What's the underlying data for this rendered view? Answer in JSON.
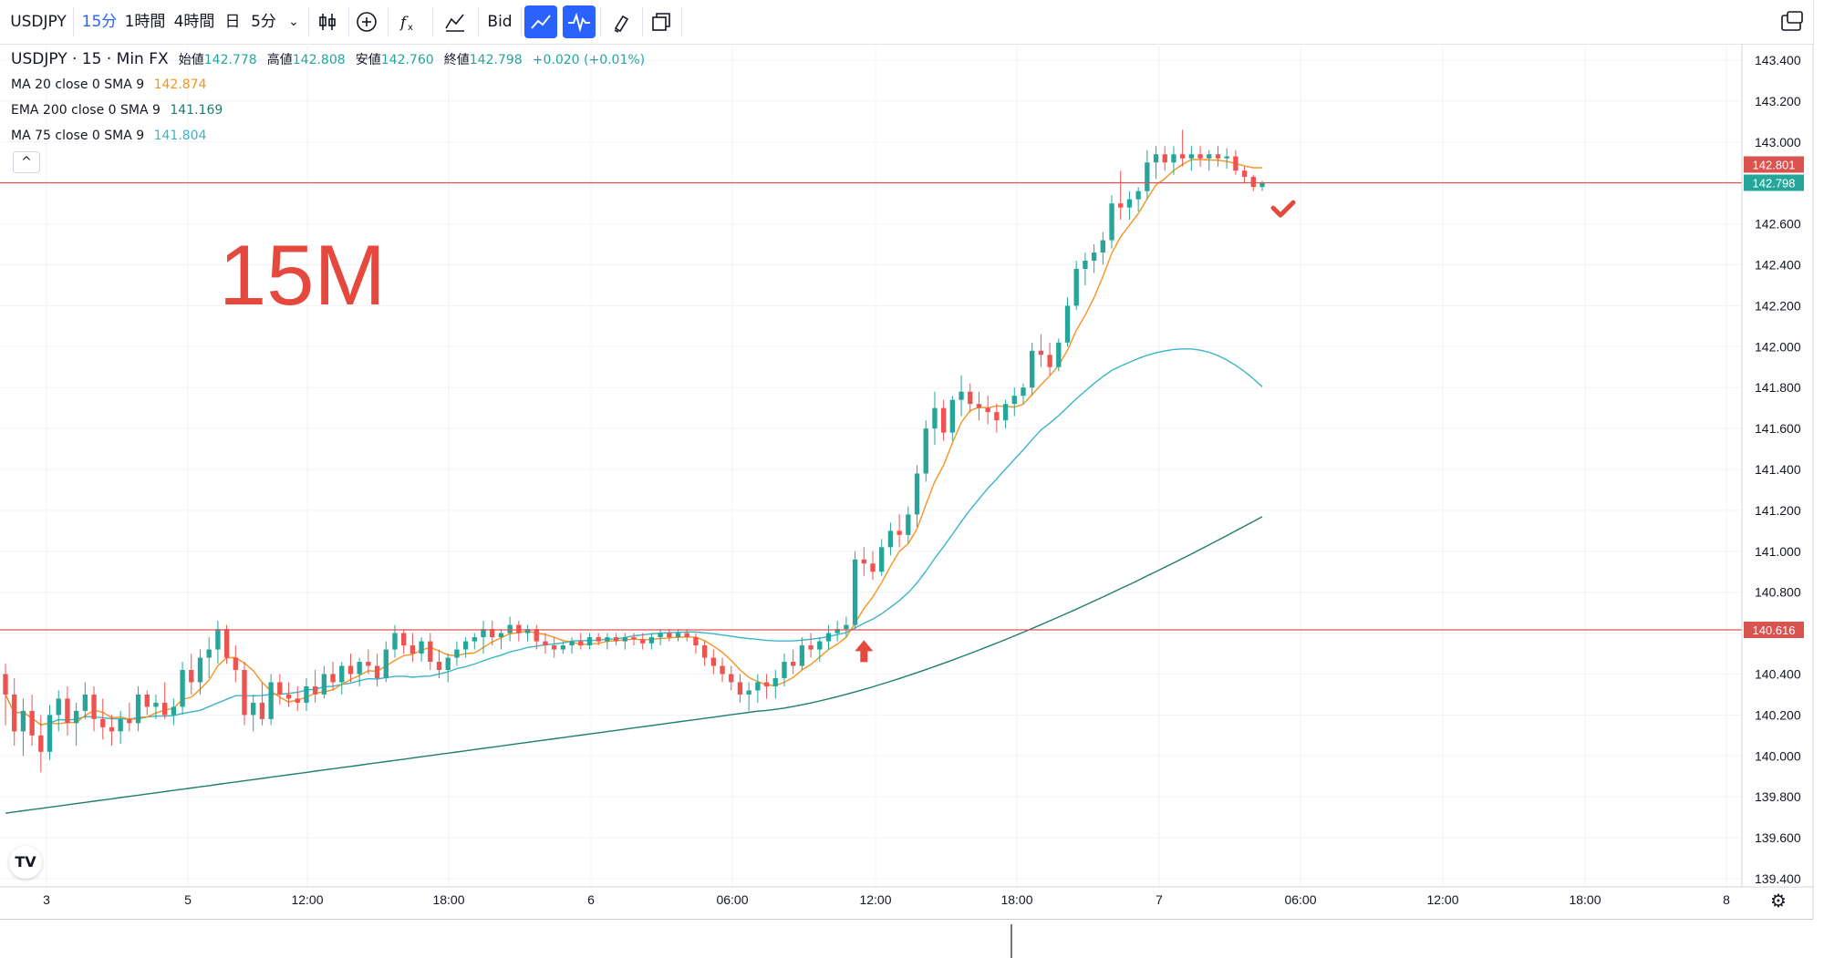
{
  "toolbar": {
    "symbol": "USDJPY",
    "interval_active": "15分",
    "interval_1h": "1時間",
    "interval_4h": "4時間",
    "interval_day": "日",
    "interval_5m": "5分",
    "bid_label": "Bid"
  },
  "legend": {
    "main": {
      "symbol": "USDJPY · 15 · Min FX",
      "open_label": "始値",
      "open": "142.778",
      "high_label": "高値",
      "high": "142.808",
      "low_label": "安値",
      "low": "142.760",
      "close_label": "終値",
      "close": "142.798",
      "change": "+0.020 (+0.01%)"
    },
    "ma20": {
      "label": "MA 20 close 0 SMA 9",
      "value": "142.874",
      "color": "#f7931e"
    },
    "ema200": {
      "label": "EMA 200 close 0 SMA 9",
      "value": "141.169",
      "color": "#1e7d6f"
    },
    "ma75": {
      "label": "MA 75 close 0 SMA 9",
      "value": "141.804",
      "color": "#3ab5c8"
    }
  },
  "overlay_text": "15M",
  "price_badges": {
    "upper_line": "142.801",
    "last_price": "142.798",
    "lower_line": "140.616"
  },
  "colors": {
    "up": "#26a69a",
    "down": "#ef5350",
    "annotation": "#e5483c",
    "hline": "#d9534f",
    "accent": "#2962ff"
  },
  "chart_data": {
    "type": "candlestick",
    "symbol": "USDJPY",
    "timeframe": "15",
    "ylim": [
      139.4,
      143.4
    ],
    "y_ticks": [
      "143.400",
      "143.200",
      "143.000",
      "142.800",
      "142.600",
      "142.400",
      "142.200",
      "142.000",
      "141.800",
      "141.600",
      "141.400",
      "141.200",
      "141.000",
      "140.800",
      "140.600",
      "140.400",
      "140.200",
      "140.000",
      "139.800",
      "139.600",
      "139.400"
    ],
    "x_ticks": [
      "3",
      "5",
      "12:00",
      "18:00",
      "6",
      "06:00",
      "12:00",
      "18:00",
      "7",
      "06:00",
      "12:00",
      "18:00",
      "8"
    ],
    "horizontal_lines": [
      142.801,
      140.616
    ],
    "annotations": [
      {
        "type": "up-arrow",
        "price": 140.53
      },
      {
        "type": "check",
        "price": 142.66
      }
    ],
    "candles": [
      [
        140.4,
        140.45,
        140.15,
        140.3
      ],
      [
        140.3,
        140.38,
        140.05,
        140.12
      ],
      [
        140.12,
        140.28,
        140.0,
        140.22
      ],
      [
        140.22,
        140.3,
        140.05,
        140.1
      ],
      [
        140.1,
        140.2,
        139.92,
        140.02
      ],
      [
        140.02,
        140.25,
        139.98,
        140.2
      ],
      [
        140.2,
        140.32,
        140.12,
        140.28
      ],
      [
        140.28,
        140.34,
        140.1,
        140.16
      ],
      [
        140.16,
        140.26,
        140.05,
        140.22
      ],
      [
        140.22,
        140.36,
        140.18,
        140.3
      ],
      [
        140.3,
        140.34,
        140.12,
        140.18
      ],
      [
        140.18,
        140.28,
        140.08,
        140.14
      ],
      [
        140.14,
        140.2,
        140.05,
        140.12
      ],
      [
        140.12,
        140.22,
        140.06,
        140.18
      ],
      [
        140.18,
        140.26,
        140.12,
        140.16
      ],
      [
        140.16,
        140.34,
        140.12,
        140.3
      ],
      [
        140.3,
        140.32,
        140.2,
        140.24
      ],
      [
        140.24,
        140.3,
        140.18,
        140.26
      ],
      [
        140.26,
        140.36,
        140.18,
        140.2
      ],
      [
        140.2,
        140.28,
        140.15,
        140.24
      ],
      [
        140.24,
        140.46,
        140.2,
        140.42
      ],
      [
        140.42,
        140.5,
        140.3,
        140.36
      ],
      [
        140.36,
        140.52,
        140.3,
        140.48
      ],
      [
        140.48,
        140.58,
        140.38,
        140.52
      ],
      [
        140.52,
        140.66,
        140.45,
        140.62
      ],
      [
        140.62,
        140.64,
        140.45,
        140.48
      ],
      [
        140.48,
        140.54,
        140.36,
        140.42
      ],
      [
        140.42,
        140.46,
        140.15,
        140.2
      ],
      [
        140.2,
        140.3,
        140.12,
        140.26
      ],
      [
        140.26,
        140.36,
        140.15,
        140.18
      ],
      [
        140.18,
        140.4,
        140.15,
        140.36
      ],
      [
        140.36,
        140.4,
        140.25,
        140.3
      ],
      [
        140.3,
        140.36,
        140.24,
        140.28
      ],
      [
        140.28,
        140.34,
        140.22,
        140.26
      ],
      [
        140.26,
        140.38,
        140.22,
        140.34
      ],
      [
        140.34,
        140.42,
        140.26,
        140.3
      ],
      [
        140.3,
        140.44,
        140.28,
        140.4
      ],
      [
        140.4,
        140.46,
        140.32,
        140.36
      ],
      [
        140.36,
        140.46,
        140.3,
        140.44
      ],
      [
        140.44,
        140.5,
        140.36,
        140.4
      ],
      [
        140.4,
        140.48,
        140.34,
        140.46
      ],
      [
        140.46,
        140.52,
        140.4,
        140.44
      ],
      [
        140.44,
        140.5,
        140.34,
        140.38
      ],
      [
        140.38,
        140.56,
        140.36,
        140.52
      ],
      [
        140.52,
        140.64,
        140.48,
        140.6
      ],
      [
        140.6,
        140.62,
        140.5,
        140.54
      ],
      [
        140.54,
        140.6,
        140.46,
        140.5
      ],
      [
        140.5,
        140.58,
        140.46,
        140.56
      ],
      [
        140.56,
        140.6,
        140.42,
        140.46
      ],
      [
        140.46,
        140.52,
        140.38,
        140.42
      ],
      [
        140.42,
        140.5,
        140.36,
        140.48
      ],
      [
        140.48,
        140.56,
        140.44,
        140.52
      ],
      [
        140.52,
        140.58,
        140.48,
        140.56
      ],
      [
        140.56,
        140.6,
        140.52,
        140.58
      ],
      [
        140.58,
        140.66,
        140.5,
        140.62
      ],
      [
        140.62,
        140.66,
        140.54,
        140.58
      ],
      [
        140.58,
        140.62,
        140.52,
        140.6
      ],
      [
        140.6,
        140.68,
        140.56,
        140.64
      ],
      [
        140.64,
        140.66,
        140.56,
        140.6
      ],
      [
        140.6,
        140.64,
        140.56,
        140.62
      ],
      [
        140.62,
        140.64,
        140.52,
        140.56
      ],
      [
        140.56,
        140.6,
        140.5,
        140.54
      ],
      [
        140.54,
        140.58,
        140.48,
        140.52
      ],
      [
        140.52,
        140.56,
        140.5,
        140.54
      ],
      [
        140.54,
        140.58,
        140.5,
        140.56
      ],
      [
        140.56,
        140.6,
        140.52,
        140.54
      ],
      [
        140.54,
        140.6,
        140.52,
        140.58
      ],
      [
        140.58,
        140.6,
        140.54,
        140.56
      ],
      [
        140.56,
        140.6,
        140.52,
        140.58
      ],
      [
        140.58,
        140.6,
        140.54,
        140.56
      ],
      [
        140.56,
        140.6,
        140.52,
        140.58
      ],
      [
        140.58,
        140.6,
        140.54,
        140.57
      ],
      [
        140.57,
        140.6,
        140.52,
        140.55
      ],
      [
        140.55,
        140.6,
        140.52,
        140.58
      ],
      [
        140.58,
        140.62,
        140.54,
        140.6
      ],
      [
        140.6,
        140.62,
        140.56,
        140.58
      ],
      [
        140.58,
        140.62,
        140.56,
        140.6
      ],
      [
        140.6,
        140.62,
        140.56,
        140.58
      ],
      [
        140.58,
        140.6,
        140.5,
        140.54
      ],
      [
        140.54,
        140.56,
        140.44,
        140.48
      ],
      [
        140.48,
        140.52,
        140.4,
        140.44
      ],
      [
        140.44,
        140.48,
        140.36,
        140.4
      ],
      [
        140.4,
        140.44,
        140.32,
        140.36
      ],
      [
        140.36,
        140.4,
        140.26,
        140.3
      ],
      [
        140.3,
        140.36,
        140.22,
        140.32
      ],
      [
        140.32,
        140.4,
        140.26,
        140.36
      ],
      [
        140.36,
        140.4,
        140.28,
        140.34
      ],
      [
        140.34,
        140.42,
        140.28,
        140.38
      ],
      [
        140.38,
        140.5,
        140.34,
        140.46
      ],
      [
        140.46,
        140.52,
        140.4,
        140.44
      ],
      [
        140.44,
        140.58,
        140.42,
        140.54
      ],
      [
        140.54,
        140.6,
        140.48,
        140.52
      ],
      [
        140.52,
        140.58,
        140.46,
        140.56
      ],
      [
        140.56,
        140.64,
        140.52,
        140.6
      ],
      [
        140.6,
        140.66,
        140.56,
        140.62
      ],
      [
        140.62,
        140.68,
        140.58,
        140.64
      ],
      [
        140.64,
        141.0,
        140.62,
        140.96
      ],
      [
        140.96,
        141.02,
        140.88,
        140.94
      ],
      [
        140.94,
        141.0,
        140.86,
        140.9
      ],
      [
        140.9,
        141.06,
        140.88,
        141.02
      ],
      [
        141.02,
        141.14,
        140.98,
        141.1
      ],
      [
        141.1,
        141.18,
        141.02,
        141.08
      ],
      [
        141.08,
        141.22,
        141.04,
        141.18
      ],
      [
        141.18,
        141.42,
        141.12,
        141.38
      ],
      [
        141.38,
        141.64,
        141.34,
        141.6
      ],
      [
        141.6,
        141.78,
        141.52,
        141.7
      ],
      [
        141.7,
        141.74,
        141.54,
        141.58
      ],
      [
        141.58,
        141.76,
        141.54,
        141.74
      ],
      [
        141.74,
        141.86,
        141.66,
        141.78
      ],
      [
        141.78,
        141.82,
        141.68,
        141.72
      ],
      [
        141.72,
        141.78,
        141.64,
        141.7
      ],
      [
        141.7,
        141.76,
        141.62,
        141.68
      ],
      [
        141.68,
        141.72,
        141.58,
        141.64
      ],
      [
        141.64,
        141.74,
        141.6,
        141.72
      ],
      [
        141.72,
        141.8,
        141.66,
        141.76
      ],
      [
        141.76,
        141.82,
        141.72,
        141.8
      ],
      [
        141.8,
        142.02,
        141.76,
        141.98
      ],
      [
        141.98,
        142.06,
        141.9,
        141.96
      ],
      [
        141.96,
        142.02,
        141.86,
        141.9
      ],
      [
        141.9,
        142.04,
        141.88,
        142.02
      ],
      [
        142.02,
        142.24,
        142.0,
        142.2
      ],
      [
        142.2,
        142.42,
        142.18,
        142.38
      ],
      [
        142.38,
        142.46,
        142.3,
        142.42
      ],
      [
        142.42,
        142.5,
        142.36,
        142.46
      ],
      [
        142.46,
        142.56,
        142.4,
        142.52
      ],
      [
        142.52,
        142.74,
        142.48,
        142.7
      ],
      [
        142.7,
        142.86,
        142.62,
        142.68
      ],
      [
        142.68,
        142.76,
        142.62,
        142.72
      ],
      [
        142.72,
        142.78,
        142.66,
        142.76
      ],
      [
        142.76,
        142.96,
        142.72,
        142.9
      ],
      [
        142.9,
        142.98,
        142.82,
        142.94
      ],
      [
        142.94,
        142.98,
        142.86,
        142.9
      ],
      [
        142.9,
        142.98,
        142.84,
        142.94
      ],
      [
        142.94,
        143.06,
        142.88,
        142.92
      ],
      [
        142.92,
        142.98,
        142.86,
        142.94
      ],
      [
        142.94,
        142.98,
        142.88,
        142.92
      ],
      [
        142.92,
        142.96,
        142.86,
        142.94
      ],
      [
        142.94,
        142.98,
        142.88,
        142.92
      ],
      [
        142.92,
        142.97,
        142.87,
        142.93
      ],
      [
        142.93,
        142.96,
        142.84,
        142.86
      ],
      [
        142.86,
        142.88,
        142.8,
        142.83
      ],
      [
        142.83,
        142.84,
        142.76,
        142.78
      ],
      [
        142.78,
        142.81,
        142.76,
        142.8
      ]
    ],
    "ma20_end": 142.874,
    "ema200_end": 141.169,
    "ma75_end": 141.804
  }
}
